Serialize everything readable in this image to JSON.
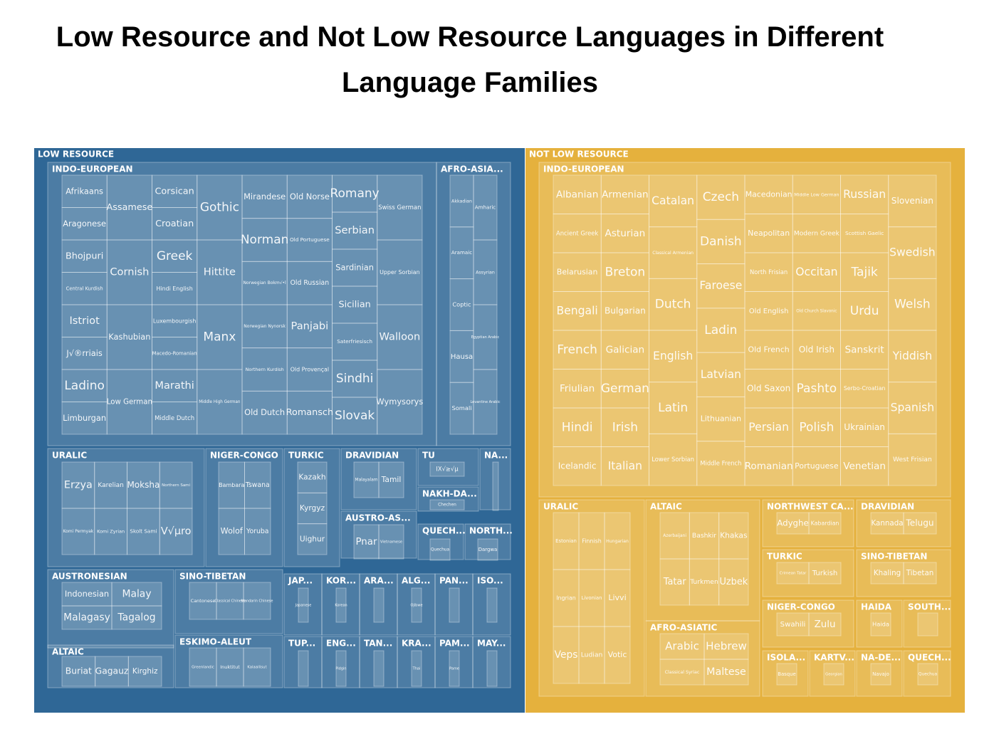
{
  "title": "Low Resource and Not Low Resource Languages in Different Language Families",
  "colors": {
    "low_resource": "#2f6796",
    "not_low_resource": "#e5b13d"
  },
  "chart_data": {
    "type": "treemap",
    "groups": [
      {
        "name": "LOW RESOURCE",
        "color": "#2f6796",
        "families": [
          {
            "name": "INDO-EUROPEAN",
            "languages": [
              "Afrikaans",
              "Aragonese",
              "Bhojpuri",
              "Central Kurdish",
              "Istriot",
              "J√®rriais",
              "Ladino",
              "Limburgan",
              "Assamese",
              "Cornish",
              "Kashubian",
              "Low German",
              "Corsican",
              "Croatian",
              "Greek",
              "Hindi English",
              "Luxembourgish",
              "Macedo-Romanian",
              "Marathi",
              "Middle Dutch",
              "Gothic",
              "Hittite",
              "Manx",
              "Middle High German",
              "Mirandese",
              "Norman",
              "Norwegian Bokm√•l",
              "Norwegian Nynorsk",
              "Northern Kurdish",
              "Old Dutch",
              "Old Norse",
              "Old Portuguese",
              "Old Russian",
              "Panjabi",
              "Old Provençal",
              "Romansch",
              "Romany",
              "Serbian",
              "Sardinian",
              "Sicilian",
              "Saterfriesisch",
              "Sindhi",
              "Slovak",
              "Swiss German",
              "Upper Sorbian",
              "Walloon",
              "Wymysorys"
            ]
          },
          {
            "name": "AFRO-ASIA...",
            "languages": [
              "Akkadian",
              "Amharic",
              "Aramaic",
              "Assyrian",
              "Coptic",
              "Egyptian Arabic",
              "Hausa",
              "Levantine Arabic",
              "Somali"
            ]
          },
          {
            "name": "URALIC",
            "languages": [
              "Erzya",
              "Karelian",
              "Moksha",
              "Northern Sami",
              "Komi Permyak",
              "Komi Zyrian",
              "Skolt Sami",
              "V√µro"
            ]
          },
          {
            "name": "NIGER-CONGO",
            "languages": [
              "Bambara",
              "Tswana",
              "Wolof",
              "Yoruba"
            ]
          },
          {
            "name": "TURKIC",
            "languages": [
              "Kazakh",
              "Kyrgyz",
              "Uighur"
            ]
          },
          {
            "name": "DRAVIDIAN",
            "languages": [
              "Malayalam",
              "Tamil"
            ]
          },
          {
            "name": "TU",
            "languages": [
              "ΙΧ√≥√μ"
            ]
          },
          {
            "name": "NA...",
            "languages": [
              ""
            ]
          },
          {
            "name": "NAKH-DA...",
            "languages": [
              "Chechen"
            ]
          },
          {
            "name": "AUSTRO-AS...",
            "languages": [
              "Pnar",
              "Vietnamese"
            ]
          },
          {
            "name": "QUECH...",
            "languages": [
              "Quechua"
            ]
          },
          {
            "name": "NORTH...",
            "languages": [
              "Dargwa"
            ]
          },
          {
            "name": "AUSTRONESIAN",
            "languages": [
              "Indonesian",
              "Malay",
              "Malagasy",
              "Tagalog"
            ]
          },
          {
            "name": "SINO-TIBETAN",
            "languages": [
              "Cantonese",
              "Classical Chinese",
              "Mandarin Chinese"
            ]
          },
          {
            "name": "ALTAIC",
            "languages": [
              "Buriat",
              "Gagauz",
              "Kirghiz"
            ]
          },
          {
            "name": "ESKIMO-ALEUT",
            "languages": [
              "Greenlandic",
              "Inuktitut",
              "Kalaallisut"
            ]
          },
          {
            "name": "JAP...",
            "languages": [
              "Japanese"
            ]
          },
          {
            "name": "KOR...",
            "languages": [
              "Korean"
            ]
          },
          {
            "name": "ARA...",
            "languages": [
              ""
            ]
          },
          {
            "name": "ALG...",
            "languages": [
              "Ojibwe"
            ]
          },
          {
            "name": "PAN...",
            "languages": [
              ""
            ]
          },
          {
            "name": "ISO...",
            "languages": [
              ""
            ]
          },
          {
            "name": "TUP...",
            "languages": [
              ""
            ]
          },
          {
            "name": "ENG...",
            "languages": [
              "Pidgin"
            ]
          },
          {
            "name": "TAN...",
            "languages": [
              ""
            ]
          },
          {
            "name": "KRA...",
            "languages": [
              "Thai"
            ]
          },
          {
            "name": "PAM...",
            "languages": [
              "Pame"
            ]
          },
          {
            "name": "MAY...",
            "languages": [
              ""
            ]
          }
        ]
      },
      {
        "name": "NOT LOW RESOURCE",
        "color": "#e5b13d",
        "families": [
          {
            "name": "INDO-EUROPEAN",
            "languages": [
              "Albanian",
              "Armenian",
              "Ancient Greek",
              "Asturian",
              "Belarusian",
              "Breton",
              "Bengali",
              "Bulgarian",
              "French",
              "Galician",
              "Friulian",
              "German",
              "Hindi",
              "Irish",
              "Icelandic",
              "Italian",
              "Catalan",
              "Czech",
              "Classical Armenian",
              "Danish",
              "Dutch",
              "Faroese",
              "English",
              "Ladin",
              "Latvian",
              "Latin",
              "Lithuanian",
              "Lower Sorbian",
              "Middle French",
              "Macedonian",
              "Middle Low German",
              "Neapolitan",
              "Modern Greek",
              "North Frisian",
              "Occitan",
              "Old English",
              "Old Church Slavonic",
              "Old French",
              "Old Irish",
              "Old Saxon",
              "Pashto",
              "Persian",
              "Polish",
              "Romanian",
              "Portuguese",
              "Russian",
              "Scottish Gaelic",
              "Tajik",
              "Urdu",
              "Sanskrit",
              "Serbo-Croatian",
              "Ukrainian",
              "Venetian",
              "Slovenian",
              "Swedish",
              "Welsh",
              "Yiddish",
              "Spanish",
              "West Frisian"
            ]
          },
          {
            "name": "URALIC",
            "languages": [
              "Estonian",
              "Finnish",
              "Hungarian",
              "Ingrian",
              "Livonian",
              "Livvi",
              "Veps",
              "Ludian",
              "Votic"
            ]
          },
          {
            "name": "ALTAIC",
            "languages": [
              "Azerbaijani",
              "Bashkir",
              "Khakas",
              "Tatar",
              "Turkmen",
              "Uzbek"
            ]
          },
          {
            "name": "NORTHWEST CA...",
            "languages": [
              "Adyghe",
              "Kabardian"
            ]
          },
          {
            "name": "DRAVIDIAN",
            "languages": [
              "Kannada",
              "Telugu"
            ]
          },
          {
            "name": "TURKIC",
            "languages": [
              "Crimean Tatar",
              "Turkish"
            ]
          },
          {
            "name": "SINO-TIBETAN",
            "languages": [
              "Khaling",
              "Tibetan"
            ]
          },
          {
            "name": "AFRO-ASIATIC",
            "languages": [
              "Arabic",
              "Hebrew",
              "Classical Syriac",
              "Maltese"
            ]
          },
          {
            "name": "NIGER-CONGO",
            "languages": [
              "Swahili",
              "Zulu"
            ]
          },
          {
            "name": "HAIDA",
            "languages": [
              "Haida"
            ]
          },
          {
            "name": "SOUTH...",
            "languages": [
              ""
            ]
          },
          {
            "name": "ISOLA...",
            "languages": [
              "Basque"
            ]
          },
          {
            "name": "KARTV...",
            "languages": [
              "Georgian"
            ]
          },
          {
            "name": "NA-DE...",
            "languages": [
              "Navajo"
            ]
          },
          {
            "name": "QUECH...",
            "languages": [
              "Quechua"
            ]
          }
        ]
      }
    ]
  }
}
